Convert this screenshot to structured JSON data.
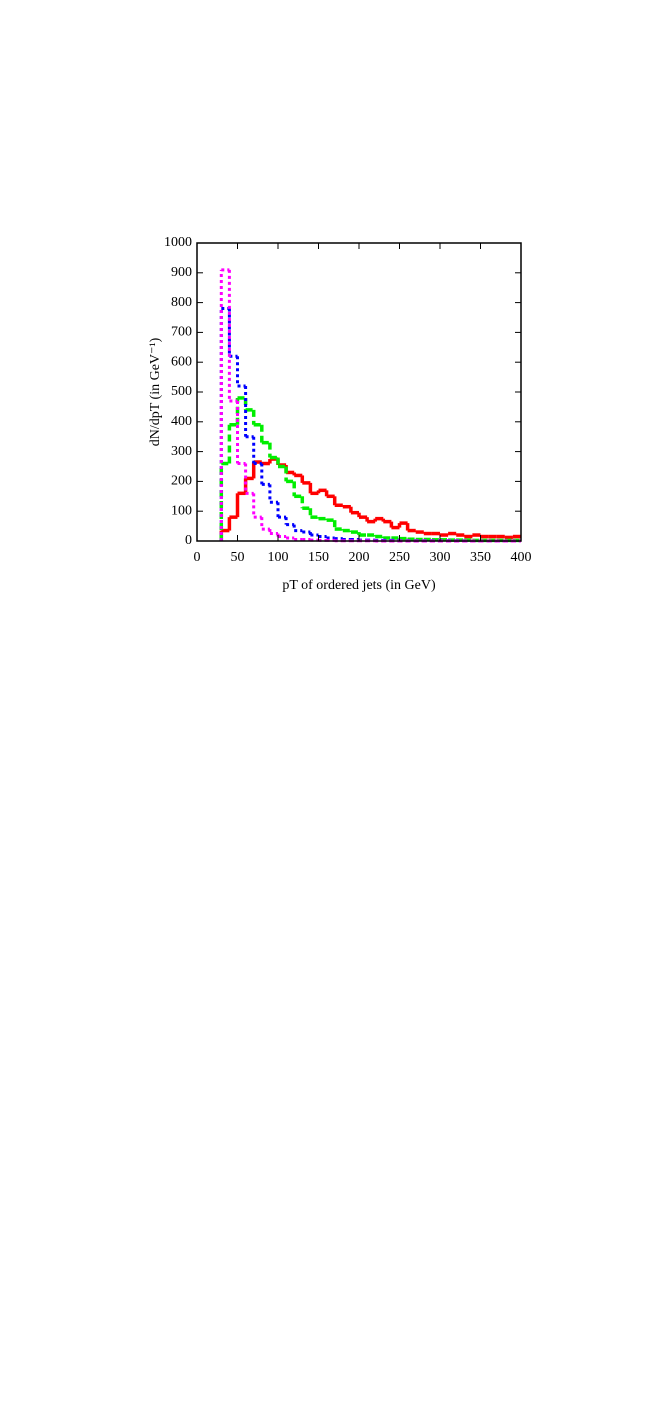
{
  "chart_data": {
    "type": "histogram",
    "xlabel": "pT of ordered jets (in GeV)",
    "ylabel": "dN/dpT (in GeV⁻¹)",
    "bins": [
      30,
      40,
      50,
      60,
      70,
      80,
      90,
      100,
      110,
      120,
      130,
      140,
      150,
      160,
      170,
      180,
      190,
      200,
      210,
      220,
      230,
      240,
      250,
      260,
      270,
      280,
      290,
      300,
      310,
      320,
      330,
      340,
      350,
      360,
      370,
      380,
      390,
      400
    ],
    "series": [
      {
        "color": "#ff0000",
        "style": "solid",
        "values": [
          35,
          80,
          160,
          210,
          265,
          260,
          275,
          255,
          230,
          220,
          195,
          160,
          170,
          150,
          120,
          115,
          95,
          80,
          65,
          75,
          65,
          45,
          60,
          35,
          30,
          25,
          25,
          20,
          25,
          20,
          15,
          20,
          15,
          15,
          15,
          12,
          15
        ]
      },
      {
        "color": "#00ee00",
        "style": "dashed",
        "values": [
          260,
          390,
          480,
          440,
          390,
          330,
          280,
          250,
          200,
          150,
          110,
          80,
          75,
          70,
          40,
          35,
          30,
          20,
          20,
          15,
          10,
          10,
          8,
          6,
          5,
          5,
          4,
          4,
          3,
          3,
          3,
          2,
          2,
          2,
          2,
          2,
          2
        ]
      },
      {
        "color": "#0000ff",
        "style": "dotted",
        "values": [
          780,
          620,
          520,
          350,
          260,
          190,
          130,
          80,
          55,
          35,
          30,
          20,
          15,
          10,
          8,
          5,
          5,
          3,
          3,
          2,
          2,
          2,
          1,
          1,
          1,
          1,
          1,
          1,
          1,
          1,
          0,
          0,
          0,
          0,
          0,
          0,
          0
        ]
      },
      {
        "color": "#ff00ff",
        "style": "dotted",
        "values": [
          910,
          470,
          260,
          160,
          80,
          40,
          25,
          15,
          10,
          5,
          5,
          3,
          2,
          2,
          1,
          1,
          1,
          1,
          1,
          0,
          0,
          0,
          0,
          0,
          0,
          0,
          0,
          0,
          0,
          0,
          0,
          0,
          0,
          0,
          0,
          0,
          0
        ]
      }
    ],
    "xlim": [
      0,
      400
    ],
    "ylim": [
      0,
      1000
    ],
    "xticks": [
      0,
      50,
      100,
      150,
      200,
      250,
      300,
      350,
      400
    ],
    "yticks": [
      0,
      100,
      200,
      300,
      400,
      500,
      600,
      700,
      800,
      900,
      1000
    ]
  }
}
